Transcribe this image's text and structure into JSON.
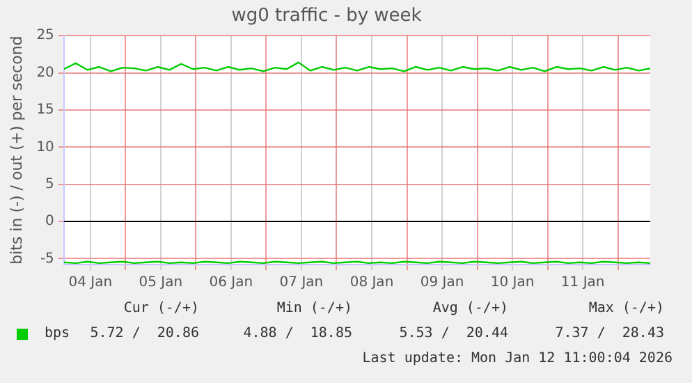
{
  "chart_data": {
    "type": "line",
    "title": "wg0 traffic - by week",
    "ylabel": "bits in (-) / out (+) per second",
    "x": [
      "2026-01-04T03:00",
      "2026-01-04T07:00",
      "2026-01-04T11:00",
      "2026-01-04T15:00",
      "2026-01-04T19:00",
      "2026-01-04T23:00",
      "2026-01-05T03:00",
      "2026-01-05T07:00",
      "2026-01-05T11:00",
      "2026-01-05T15:00",
      "2026-01-05T19:00",
      "2026-01-05T23:00",
      "2026-01-06T03:00",
      "2026-01-06T07:00",
      "2026-01-06T11:00",
      "2026-01-06T15:00",
      "2026-01-06T19:00",
      "2026-01-06T23:00",
      "2026-01-07T03:00",
      "2026-01-07T07:00",
      "2026-01-07T11:00",
      "2026-01-07T15:00",
      "2026-01-07T19:00",
      "2026-01-07T23:00",
      "2026-01-08T03:00",
      "2026-01-08T07:00",
      "2026-01-08T11:00",
      "2026-01-08T15:00",
      "2026-01-08T19:00",
      "2026-01-08T23:00",
      "2026-01-09T03:00",
      "2026-01-09T07:00",
      "2026-01-09T11:00",
      "2026-01-09T15:00",
      "2026-01-09T19:00",
      "2026-01-09T23:00",
      "2026-01-10T03:00",
      "2026-01-10T07:00",
      "2026-01-10T11:00",
      "2026-01-10T15:00",
      "2026-01-10T19:00",
      "2026-01-10T23:00",
      "2026-01-11T03:00",
      "2026-01-11T07:00",
      "2026-01-11T11:00",
      "2026-01-11T15:00",
      "2026-01-11T19:00",
      "2026-01-11T23:00",
      "2026-01-12T03:00",
      "2026-01-12T07:00",
      "2026-01-12T11:00"
    ],
    "series": [
      {
        "name": "bps",
        "color": "#00cc00",
        "values": [
          20.5,
          21.3,
          20.4,
          20.8,
          20.2,
          20.7,
          20.6,
          20.3,
          20.8,
          20.4,
          21.2,
          20.5,
          20.7,
          20.3,
          20.8,
          20.4,
          20.6,
          20.2,
          20.7,
          20.5,
          21.4,
          20.3,
          20.8,
          20.4,
          20.7,
          20.3,
          20.8,
          20.5,
          20.6,
          20.2,
          20.8,
          20.4,
          20.7,
          20.3,
          20.8,
          20.5,
          20.6,
          20.3,
          20.8,
          20.4,
          20.7,
          20.2,
          20.8,
          20.5,
          20.6,
          20.3,
          20.8,
          20.4,
          20.7,
          20.3,
          20.6
        ]
      },
      {
        "color": "#00cc00",
        "values": [
          -5.5,
          -5.6,
          -5.4,
          -5.6,
          -5.5,
          -5.4,
          -5.6,
          -5.5,
          -5.4,
          -5.6,
          -5.5,
          -5.6,
          -5.4,
          -5.5,
          -5.6,
          -5.4,
          -5.5,
          -5.6,
          -5.4,
          -5.5,
          -5.6,
          -5.5,
          -5.4,
          -5.6,
          -5.5,
          -5.4,
          -5.6,
          -5.5,
          -5.6,
          -5.4,
          -5.5,
          -5.6,
          -5.4,
          -5.5,
          -5.6,
          -5.4,
          -5.5,
          -5.6,
          -5.5,
          -5.4,
          -5.6,
          -5.5,
          -5.4,
          -5.6,
          -5.5,
          -5.6,
          -5.4,
          -5.5,
          -5.6,
          -5.5,
          -5.6
        ]
      }
    ],
    "xlim": [
      "2026-01-04T03:00",
      "2026-01-12T11:00"
    ],
    "xticks": [
      {
        "value": "2026-01-04T12:00",
        "label": "04 Jan"
      },
      {
        "value": "2026-01-05T00:00",
        "label": null
      },
      {
        "value": "2026-01-05T12:00",
        "label": "05 Jan"
      },
      {
        "value": "2026-01-06T00:00",
        "label": null
      },
      {
        "value": "2026-01-06T12:00",
        "label": "06 Jan"
      },
      {
        "value": "2026-01-07T00:00",
        "label": null
      },
      {
        "value": "2026-01-07T12:00",
        "label": "07 Jan"
      },
      {
        "value": "2026-01-08T00:00",
        "label": null
      },
      {
        "value": "2026-01-08T12:00",
        "label": "08 Jan"
      },
      {
        "value": "2026-01-09T00:00",
        "label": null
      },
      {
        "value": "2026-01-09T12:00",
        "label": "09 Jan"
      },
      {
        "value": "2026-01-10T00:00",
        "label": null
      },
      {
        "value": "2026-01-10T12:00",
        "label": "10 Jan"
      },
      {
        "value": "2026-01-11T00:00",
        "label": null
      },
      {
        "value": "2026-01-11T12:00",
        "label": "11 Jan"
      },
      {
        "value": "2026-01-12T00:00",
        "label": null
      }
    ],
    "ylim": [
      -5.8,
      25
    ],
    "yticks": [
      -5,
      0,
      5,
      10,
      15,
      20,
      25
    ],
    "ref_lines": [
      {
        "axis": "y",
        "value": 0,
        "color": "#000000"
      }
    ],
    "grid": true,
    "legend": "bottom left",
    "marker": "none",
    "line_style": "solid",
    "annotations": [
      "Cur (-/+)",
      "Min (-/+)",
      "Avg (-/+)",
      "Max (-/+)",
      "5.72 /  20.86",
      "4.88 /  18.85",
      "5.53 /  20.44",
      "7.37 /  28.43",
      "Last update: Mon Jan 12 11:00:04 2026"
    ]
  }
}
